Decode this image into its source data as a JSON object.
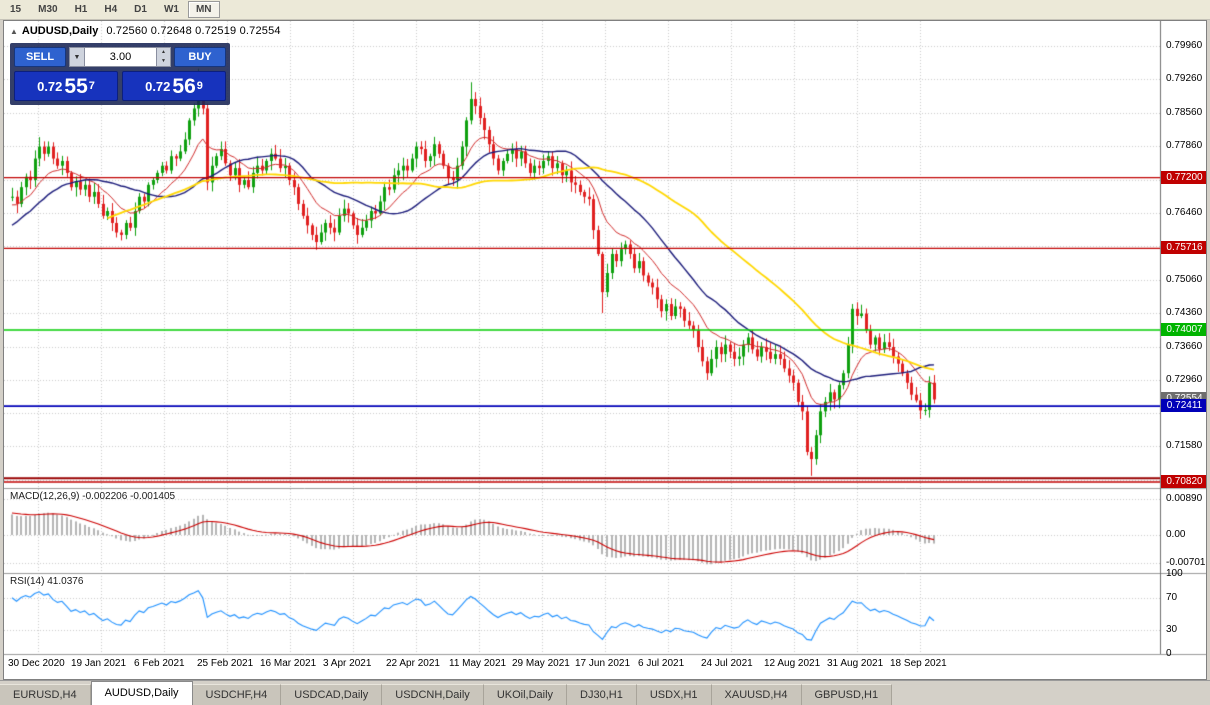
{
  "toolbar": {
    "timeframes": [
      "15",
      "M30",
      "H1",
      "H4",
      "D1",
      "W1",
      "MN"
    ],
    "boxed": "MN"
  },
  "icons": {
    "collapse_arrow": "▲",
    "dropdown_arrow": "▼",
    "spin_up": "▲",
    "spin_down": "▼"
  },
  "chart_header": {
    "symbol_period": "AUDUSD,Daily",
    "ohlc": "0.72560 0.72648 0.72519 0.72554"
  },
  "trade_panel": {
    "sell_label": "SELL",
    "buy_label": "BUY",
    "volume": "3.00",
    "sell_price_prefix": "0.72",
    "sell_price_big": "55",
    "sell_price_sup": "7",
    "buy_price_prefix": "0.72",
    "buy_price_big": "56",
    "buy_price_sup": "9"
  },
  "price_axis": {
    "labels": [
      {
        "text": "0.79960",
        "value": 0.7996
      },
      {
        "text": "0.79260",
        "value": 0.7926
      },
      {
        "text": "0.78560",
        "value": 0.7856
      },
      {
        "text": "0.77860",
        "value": 0.7786
      },
      {
        "text": "0.76460",
        "value": 0.7646
      },
      {
        "text": "0.75060",
        "value": 0.7506
      },
      {
        "text": "0.74360",
        "value": 0.7436
      },
      {
        "text": "0.73660",
        "value": 0.7366
      },
      {
        "text": "0.72960",
        "value": 0.7296
      },
      {
        "text": "0.71580",
        "value": 0.7158
      }
    ],
    "grid_values": [
      0.7996,
      0.7926,
      0.7856,
      0.7786,
      0.7716,
      0.7646,
      0.7576,
      0.7506,
      0.7436,
      0.7366,
      0.7296,
      0.7226,
      0.7158,
      0.7086
    ],
    "badges": [
      {
        "text": "0.77200",
        "value": 0.772,
        "bg": "#c00000"
      },
      {
        "text": "0.75716",
        "value": 0.75716,
        "bg": "#c00000"
      },
      {
        "text": "0.74007",
        "value": 0.74007,
        "bg": "#00b400"
      },
      {
        "text": "0.72554",
        "value": 0.72554,
        "bg": "#6e6e6e"
      },
      {
        "text": "0.72411",
        "value": 0.72411,
        "bg": "#0000b8"
      },
      {
        "text": "0.70820",
        "value": 0.7082,
        "bg": "#c00000"
      }
    ]
  },
  "hlines": [
    {
      "value": 0.772,
      "color": "#c00000",
      "width": 1.3
    },
    {
      "value": 0.75716,
      "color": "#c00000",
      "width": 1.3
    },
    {
      "value": 0.74007,
      "color": "#00cc00",
      "width": 1.6
    },
    {
      "value": 0.72411,
      "color": "#0000b8",
      "width": 1.8
    },
    {
      "value": 0.709,
      "color": "#990000",
      "width": 2.0
    },
    {
      "value": 0.7082,
      "color": "#c00000",
      "width": 1.3
    }
  ],
  "macd": {
    "label": "MACD(12,26,9) -0.002206 -0.001405",
    "params": [
      12,
      26,
      9
    ],
    "axis": [
      {
        "text": "0.00890",
        "value": 0.0089
      },
      {
        "text": "0.00",
        "value": 0
      },
      {
        "text": "-0.00701",
        "value": -0.00701
      }
    ],
    "histogram_color": "#b4b4b4",
    "signal_color": "#cc0000"
  },
  "rsi": {
    "label": "RSI(14) 41.0376",
    "period": 14,
    "axis": [
      {
        "text": "100",
        "value": 100
      },
      {
        "text": "70",
        "value": 70
      },
      {
        "text": "30",
        "value": 30
      },
      {
        "text": "0",
        "value": 0
      }
    ],
    "levels": [
      70,
      30
    ],
    "line_color": "#1e90ff"
  },
  "tabs": {
    "items": [
      "EURUSD,H4",
      "AUDUSD,Daily",
      "USDCHF,H4",
      "USDCAD,Daily",
      "USDCNH,Daily",
      "UKOil,Daily",
      "DJ30,H1",
      "USDX,H1",
      "XAUUSD,H4",
      "GBPUSD,H1"
    ],
    "active": "AUDUSD,Daily"
  },
  "chart_data": {
    "type": "candlestick",
    "title": "AUDUSD Daily",
    "current_candle": {
      "open": 0.7256,
      "high": 0.72648,
      "low": 0.72519,
      "close": 0.72554
    },
    "x_ticks": [
      "30 Dec 2020",
      "19 Jan 2021",
      "6 Feb 2021",
      "25 Feb 2021",
      "16 Mar 2021",
      "3 Apr 2021",
      "22 Apr 2021",
      "11 May 2021",
      "29 May 2021",
      "17 Jun 2021",
      "6 Jul 2021",
      "24 Jul 2021",
      "12 Aug 2021",
      "31 Aug 2021",
      "18 Sep 2021"
    ],
    "ylim": [
      0.707,
      0.8048
    ],
    "up_color": "#0fa00f",
    "down_color": "#e02020",
    "moving_averages": [
      {
        "name": "fast",
        "method": "ema",
        "period": 12,
        "color": "#d02b2b",
        "width": 1
      },
      {
        "name": "medium",
        "method": "sma",
        "period": 24,
        "color": "#1b1b7a",
        "width": 1.4
      },
      {
        "name": "slow",
        "method": "sma",
        "period": 52,
        "color": "#ffd700",
        "width": 1.8
      }
    ],
    "pre_closes": [
      0.74,
      0.742,
      0.7405,
      0.744,
      0.747,
      0.7455,
      0.749,
      0.751,
      0.75,
      0.753,
      0.7555,
      0.754,
      0.757,
      0.7585,
      0.757,
      0.76,
      0.762,
      0.7605,
      0.7635,
      0.765,
      0.764,
      0.7665,
      0.765,
      0.767,
      0.769,
      0.768,
      0.77,
      0.769,
      0.767,
      0.768
    ],
    "closes": [
      0.768,
      0.7665,
      0.77,
      0.7722,
      0.7715,
      0.776,
      0.7785,
      0.777,
      0.7785,
      0.776,
      0.7745,
      0.7755,
      0.773,
      0.77,
      0.7712,
      0.7695,
      0.7705,
      0.768,
      0.769,
      0.7665,
      0.764,
      0.765,
      0.7625,
      0.7605,
      0.76,
      0.7625,
      0.7615,
      0.765,
      0.768,
      0.767,
      0.7705,
      0.7715,
      0.773,
      0.7745,
      0.7735,
      0.7765,
      0.776,
      0.7775,
      0.78,
      0.784,
      0.7865,
      0.79,
      0.7865,
      0.771,
      0.7745,
      0.7765,
      0.778,
      0.775,
      0.7725,
      0.774,
      0.7705,
      0.7715,
      0.77,
      0.773,
      0.7745,
      0.7735,
      0.7755,
      0.777,
      0.776,
      0.774,
      0.7745,
      0.7715,
      0.77,
      0.7665,
      0.764,
      0.762,
      0.76,
      0.7585,
      0.7605,
      0.7625,
      0.7615,
      0.7605,
      0.764,
      0.7655,
      0.7645,
      0.762,
      0.76,
      0.7615,
      0.763,
      0.765,
      0.7645,
      0.767,
      0.77,
      0.7695,
      0.7725,
      0.7735,
      0.7745,
      0.7735,
      0.776,
      0.7785,
      0.778,
      0.7755,
      0.7765,
      0.779,
      0.777,
      0.7745,
      0.772,
      0.7715,
      0.7745,
      0.7785,
      0.784,
      0.7885,
      0.787,
      0.7845,
      0.782,
      0.779,
      0.776,
      0.7735,
      0.7755,
      0.777,
      0.778,
      0.776,
      0.7775,
      0.775,
      0.773,
      0.7745,
      0.774,
      0.7755,
      0.7765,
      0.774,
      0.775,
      0.7725,
      0.7735,
      0.771,
      0.7705,
      0.769,
      0.768,
      0.7675,
      0.761,
      0.756,
      0.748,
      0.752,
      0.756,
      0.7545,
      0.757,
      0.758,
      0.756,
      0.753,
      0.7545,
      0.7515,
      0.75,
      0.749,
      0.7465,
      0.744,
      0.7455,
      0.743,
      0.745,
      0.7445,
      0.742,
      0.741,
      0.74,
      0.7365,
      0.7335,
      0.731,
      0.734,
      0.7365,
      0.735,
      0.737,
      0.7355,
      0.734,
      0.7345,
      0.737,
      0.7385,
      0.736,
      0.7345,
      0.7365,
      0.7355,
      0.734,
      0.735,
      0.734,
      0.732,
      0.7305,
      0.729,
      0.725,
      0.723,
      0.7145,
      0.713,
      0.718,
      0.723,
      0.725,
      0.727,
      0.7255,
      0.7285,
      0.731,
      0.737,
      0.7445,
      0.743,
      0.7435,
      0.74,
      0.737,
      0.7385,
      0.736,
      0.7375,
      0.7365,
      0.7345,
      0.733,
      0.731,
      0.729,
      0.7265,
      0.7253,
      0.7232,
      0.7233,
      0.729,
      0.7255
    ],
    "wick_boost": {
      "41": [
        0.004,
        0
      ],
      "101": [
        0.0025,
        0
      ],
      "130": [
        0,
        0.003
      ],
      "176": [
        0,
        0.0025
      ]
    }
  }
}
